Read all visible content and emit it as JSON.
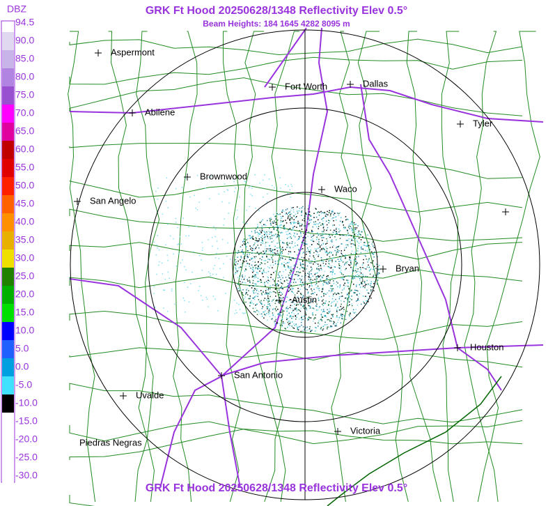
{
  "header": {
    "title": "GRK Ft Hood 20250628/1348 Reflectivity Elev 0.5°",
    "subtitle": "Beam Heights: 184 1645 4282 8095 m"
  },
  "legend": {
    "unit": "DBZ",
    "labels": [
      "94.5",
      "90.0",
      "85.0",
      "80.0",
      "75.0",
      "70.0",
      "65.0",
      "60.0",
      "55.0",
      "50.0",
      "45.0",
      "40.0",
      "35.0",
      "30.0",
      "25.0",
      "20.0",
      "15.0",
      "10.0",
      "5.0",
      "0.0",
      "-5.0",
      "-10.0",
      "-15.0",
      "-20.0",
      "-25.0",
      "-30.0"
    ]
  },
  "cities": [
    "Aspermont",
    "Abilene",
    "Fort Worth",
    "Dallas",
    "Tyler",
    "Brownwood",
    "Waco",
    "San Angelo",
    "Bryan",
    "Austin",
    "Houston",
    "San Antonio",
    "Uvalde",
    "Victoria",
    "Piedras Negras"
  ]
}
